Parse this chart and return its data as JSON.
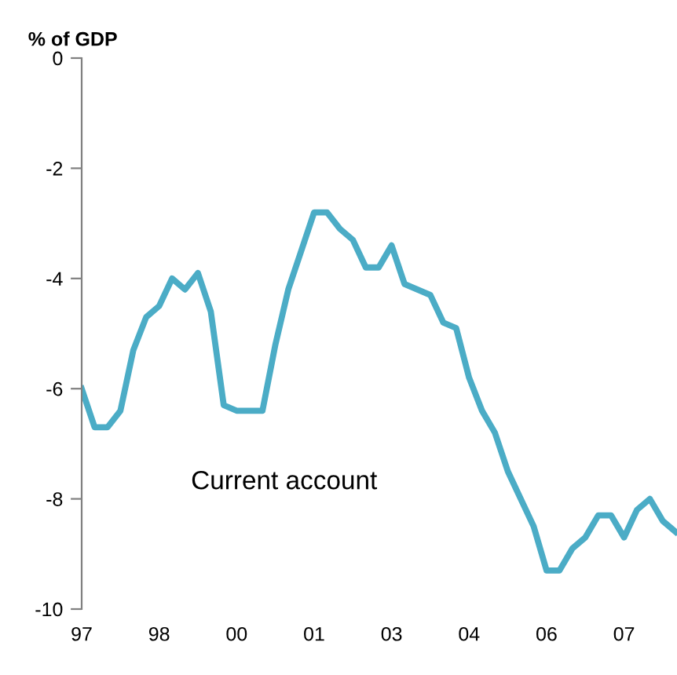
{
  "chart_data": {
    "type": "line",
    "ylabel": "% of GDP",
    "annotations": [
      "Current account"
    ],
    "ylim": [
      -10,
      0
    ],
    "yticks": [
      0,
      -2,
      -4,
      -6,
      -8,
      -10
    ],
    "categories": [
      "97",
      null,
      null,
      null,
      null,
      null,
      "98",
      null,
      null,
      null,
      null,
      null,
      "00",
      null,
      null,
      null,
      null,
      null,
      "01",
      null,
      null,
      null,
      null,
      null,
      "03",
      null,
      null,
      null,
      null,
      null,
      "04",
      null,
      null,
      null,
      null,
      null,
      "06",
      null,
      null,
      null,
      null,
      null,
      "07",
      null,
      null,
      null,
      null
    ],
    "grid": false,
    "legend": false,
    "series": [
      {
        "color": "#4bacc6",
        "values": [
          -6.0,
          -6.7,
          -6.7,
          -6.4,
          -5.3,
          -4.7,
          -4.5,
          -4.0,
          -4.2,
          -3.9,
          -4.6,
          -6.3,
          -6.4,
          -6.4,
          -6.4,
          -5.2,
          -4.2,
          -3.5,
          -2.8,
          -2.8,
          -3.1,
          -3.3,
          -3.8,
          -3.8,
          -3.4,
          -4.1,
          -4.2,
          -4.3,
          -4.8,
          -4.9,
          -5.8,
          -6.4,
          -6.8,
          -7.5,
          -8.0,
          -8.5,
          -9.3,
          -9.3,
          -8.9,
          -8.7,
          -8.3,
          -8.3,
          -8.7,
          -8.2,
          -8.0,
          -8.4,
          -8.6
        ]
      }
    ]
  }
}
